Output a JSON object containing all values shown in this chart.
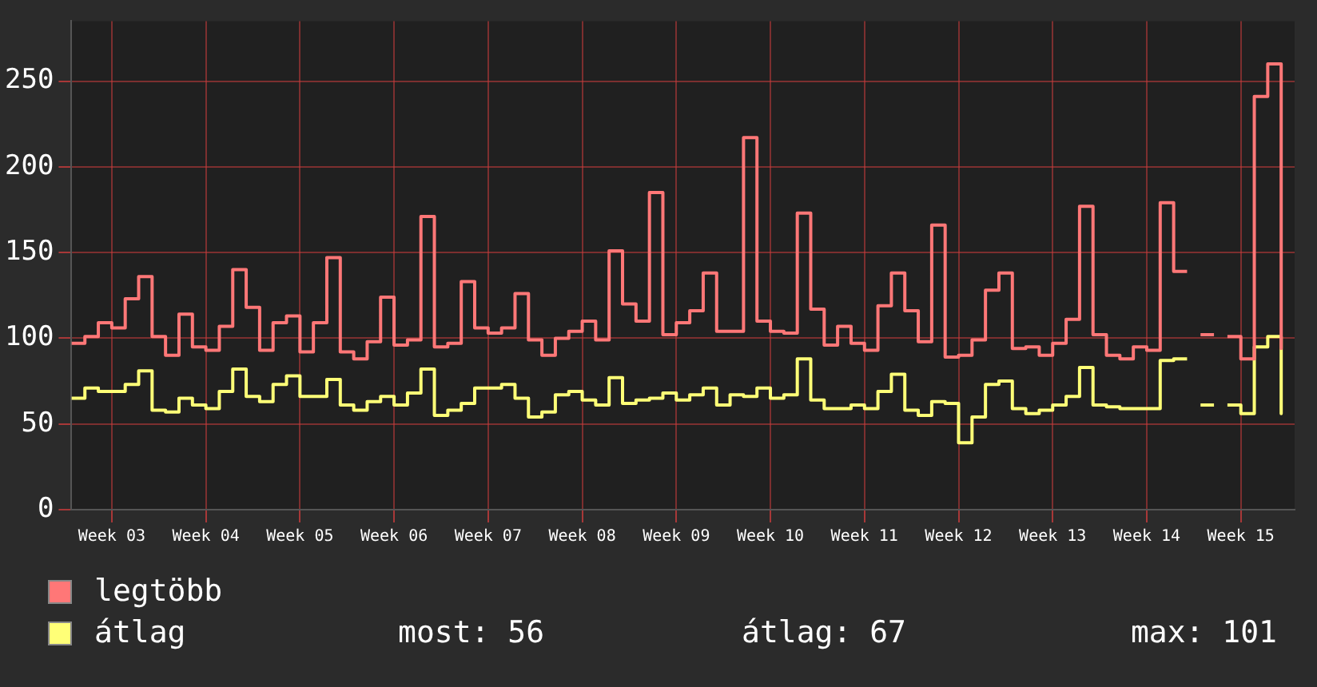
{
  "chart_data": {
    "type": "step",
    "categories": [
      null,
      null,
      null,
      "Week 03",
      null,
      null,
      null,
      null,
      null,
      null,
      "Week 04",
      null,
      null,
      null,
      null,
      null,
      null,
      "Week 05",
      null,
      null,
      null,
      null,
      null,
      null,
      "Week 06",
      null,
      null,
      null,
      null,
      null,
      null,
      "Week 07",
      null,
      null,
      null,
      null,
      null,
      null,
      "Week 08",
      null,
      null,
      null,
      null,
      null,
      null,
      "Week 09",
      null,
      null,
      null,
      null,
      null,
      null,
      "Week 10",
      null,
      null,
      null,
      null,
      null,
      null,
      "Week 11",
      null,
      null,
      null,
      null,
      null,
      null,
      "Week 12",
      null,
      null,
      null,
      null,
      null,
      null,
      "Week 13",
      null,
      null,
      null,
      null,
      null,
      null,
      "Week 14",
      null,
      null,
      null,
      null,
      null,
      null,
      "Week 15",
      null,
      null,
      null
    ],
    "series": [
      {
        "name": "legtöbb",
        "color": "#ff7777",
        "values": [
          97,
          101,
          109,
          106,
          123,
          136,
          101,
          90,
          114,
          95,
          93,
          107,
          140,
          118,
          93,
          109,
          113,
          92,
          109,
          147,
          92,
          88,
          98,
          124,
          96,
          99,
          171,
          95,
          97,
          133,
          106,
          103,
          106,
          126,
          99,
          90,
          100,
          104,
          110,
          99,
          151,
          120,
          110,
          185,
          102,
          109,
          116,
          138,
          104,
          104,
          217,
          110,
          104,
          103,
          173,
          117,
          96,
          107,
          97,
          93,
          119,
          138,
          116,
          98,
          166,
          89,
          90,
          99,
          128,
          138,
          94,
          95,
          90,
          97,
          111,
          177,
          102,
          90,
          88,
          95,
          93,
          179,
          139,
          null,
          102,
          null,
          101,
          88,
          241,
          260,
          94
        ]
      },
      {
        "name": "átlag",
        "color": "#ffff77",
        "values": [
          65,
          71,
          69,
          69,
          73,
          81,
          58,
          57,
          65,
          61,
          59,
          69,
          82,
          66,
          63,
          73,
          78,
          66,
          66,
          76,
          61,
          58,
          63,
          66,
          61,
          68,
          82,
          55,
          58,
          62,
          71,
          71,
          73,
          65,
          54,
          57,
          67,
          69,
          64,
          61,
          77,
          62,
          64,
          65,
          68,
          64,
          67,
          71,
          61,
          67,
          66,
          71,
          65,
          67,
          88,
          64,
          59,
          59,
          61,
          59,
          69,
          79,
          58,
          55,
          63,
          62,
          39,
          54,
          73,
          75,
          59,
          56,
          58,
          61,
          66,
          83,
          61,
          60,
          59,
          59,
          59,
          87,
          88,
          null,
          61,
          null,
          61,
          56,
          95,
          101,
          56
        ]
      }
    ],
    "ylim": [
      0,
      285
    ],
    "yticks": [
      0,
      50,
      100,
      150,
      200,
      250
    ],
    "grid": true,
    "legend": "bottom",
    "marker": "none",
    "line_style": "solid",
    "annotations": [
      "most: 56",
      "átlag: 67",
      "max: 101"
    ]
  }
}
